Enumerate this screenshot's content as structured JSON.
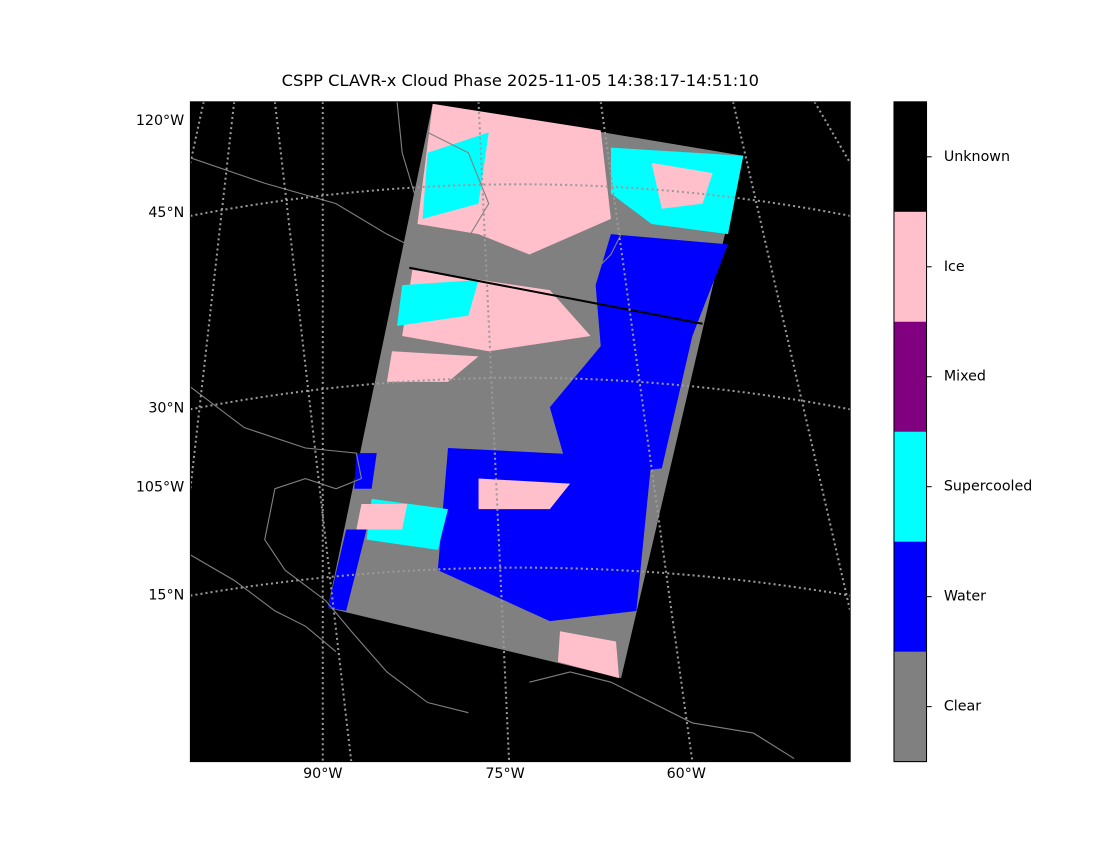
{
  "title": "CSPP CLAVR-x Cloud Phase 2025-11-05 14:38:17-14:51:10",
  "map": {
    "left_labels": [
      "120°W",
      "45°N",
      "30°N",
      "105°W",
      "15°N"
    ],
    "bottom_labels": [
      "90°W",
      "75°W",
      "60°W"
    ]
  },
  "colorbar": {
    "classes": [
      {
        "name": "Unknown",
        "color": "#000000"
      },
      {
        "name": "Ice",
        "color": "#ffc0cb"
      },
      {
        "name": "Mixed",
        "color": "#800080"
      },
      {
        "name": "Supercooled",
        "color": "#00ffff"
      },
      {
        "name": "Water",
        "color": "#0000ff"
      },
      {
        "name": "Clear",
        "color": "#808080"
      }
    ]
  }
}
